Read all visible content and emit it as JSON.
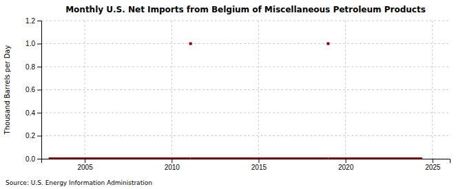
{
  "chart_data": {
    "type": "scatter",
    "title": "Monthly U.S. Net Imports from Belgium of Miscellaneous Petroleum Products",
    "y_label": "Thousand Barrels per Day",
    "annotations": [
      "Source: U.S. Energy Information Administration"
    ],
    "color": "#8b0000",
    "marker": "square",
    "grid": true,
    "xlim": [
      2002.5,
      2026
    ],
    "ylim": [
      0.0,
      1.2
    ],
    "xticks": [
      2005,
      2010,
      2015,
      2020,
      2025
    ],
    "yticks": [
      {
        "value": 0.0,
        "label": "0.0"
      },
      0.2,
      0.4,
      0.6,
      0.8,
      {
        "value": 1.0,
        "label": "1.0"
      },
      1.2
    ],
    "x": [
      2003.0,
      2003.083,
      2003.167,
      2003.25,
      2003.333,
      2003.417,
      2003.5,
      2003.583,
      2003.667,
      2003.75,
      2003.833,
      2003.917,
      2004.0,
      2004.083,
      2004.167,
      2004.25,
      2004.333,
      2004.417,
      2004.5,
      2004.583,
      2004.667,
      2004.75,
      2004.833,
      2004.917,
      2005.0,
      2005.083,
      2005.167,
      2005.25,
      2005.333,
      2005.417,
      2005.5,
      2005.583,
      2005.667,
      2005.75,
      2005.833,
      2005.917,
      2006.0,
      2006.083,
      2006.167,
      2006.25,
      2006.333,
      2006.417,
      2006.5,
      2006.583,
      2006.667,
      2006.75,
      2006.833,
      2006.917,
      2007.0,
      2007.083,
      2007.167,
      2007.25,
      2007.333,
      2007.417,
      2007.5,
      2007.583,
      2007.667,
      2007.75,
      2007.833,
      2007.917,
      2008.0,
      2008.083,
      2008.167,
      2008.25,
      2008.333,
      2008.417,
      2008.5,
      2008.583,
      2008.667,
      2008.75,
      2008.833,
      2008.917,
      2009.0,
      2009.083,
      2009.167,
      2009.25,
      2009.333,
      2009.417,
      2009.5,
      2009.583,
      2009.667,
      2009.75,
      2009.833,
      2009.917,
      2010.0,
      2010.083,
      2010.167,
      2010.25,
      2010.333,
      2010.417,
      2010.5,
      2010.583,
      2010.667,
      2010.75,
      2010.833,
      2010.917,
      2011.0,
      2011.083,
      2011.167,
      2011.25,
      2011.333,
      2011.417,
      2011.5,
      2011.583,
      2011.667,
      2011.75,
      2011.833,
      2011.917,
      2012.0,
      2012.083,
      2012.167,
      2012.25,
      2012.333,
      2012.417,
      2012.5,
      2012.583,
      2012.667,
      2012.75,
      2012.833,
      2012.917,
      2013.0,
      2013.083,
      2013.167,
      2013.25,
      2013.333,
      2013.417,
      2013.5,
      2013.583,
      2013.667,
      2013.75,
      2013.833,
      2013.917,
      2014.0,
      2014.083,
      2014.167,
      2014.25,
      2014.333,
      2014.417,
      2014.5,
      2014.583,
      2014.667,
      2014.75,
      2014.833,
      2014.917,
      2015.0,
      2015.083,
      2015.167,
      2015.25,
      2015.333,
      2015.417,
      2015.5,
      2015.583,
      2015.667,
      2015.75,
      2015.833,
      2015.917,
      2016.0,
      2016.083,
      2016.167,
      2016.25,
      2016.333,
      2016.417,
      2016.5,
      2016.583,
      2016.667,
      2016.75,
      2016.833,
      2016.917,
      2017.0,
      2017.083,
      2017.167,
      2017.25,
      2017.333,
      2017.417,
      2017.5,
      2017.583,
      2017.667,
      2017.75,
      2017.833,
      2017.917,
      2018.0,
      2018.083,
      2018.167,
      2018.25,
      2018.333,
      2018.417,
      2018.5,
      2018.583,
      2018.667,
      2018.75,
      2018.833,
      2018.917,
      2019.0,
      2019.083,
      2019.167,
      2019.25,
      2019.333,
      2019.417,
      2019.5,
      2019.583,
      2019.667,
      2019.75,
      2019.833,
      2019.917,
      2020.0,
      2020.083,
      2020.167,
      2020.25,
      2020.333,
      2020.417,
      2020.5,
      2020.583,
      2020.667,
      2020.75,
      2020.833,
      2020.917,
      2021.0,
      2021.083,
      2021.167,
      2021.25,
      2021.333,
      2021.417,
      2021.5,
      2021.583,
      2021.667,
      2021.75,
      2021.833,
      2021.917,
      2022.0,
      2022.083,
      2022.167,
      2022.25,
      2022.333,
      2022.417,
      2022.5,
      2022.583,
      2022.667,
      2022.75,
      2022.833,
      2022.917,
      2023.0,
      2023.083,
      2023.167,
      2023.25,
      2023.333,
      2023.417,
      2023.5,
      2023.583,
      2023.667,
      2023.75,
      2023.833,
      2023.917,
      2024.0,
      2024.083,
      2024.167,
      2024.25,
      2024.333
    ],
    "values": [
      0,
      0,
      0,
      0,
      0,
      0,
      0,
      0,
      0,
      0,
      0,
      0,
      0,
      0,
      0,
      0,
      0,
      0,
      0,
      0,
      0,
      0,
      0,
      0,
      0,
      0,
      0,
      0,
      0,
      0,
      0,
      0,
      0,
      0,
      0,
      0,
      0,
      0,
      0,
      0,
      0,
      0,
      0,
      0,
      0,
      0,
      0,
      0,
      0,
      0,
      0,
      0,
      0,
      0,
      0,
      0,
      0,
      0,
      0,
      0,
      0,
      0,
      0,
      0,
      0,
      0,
      0,
      0,
      0,
      0,
      0,
      0,
      0,
      0,
      0,
      0,
      0,
      0,
      0,
      0,
      0,
      0,
      0,
      0,
      0,
      0,
      0,
      0,
      0,
      0,
      0,
      0,
      0,
      0,
      0,
      0,
      0,
      1,
      0,
      0,
      0,
      0,
      0,
      0,
      0,
      0,
      0,
      0,
      0,
      0,
      0,
      0,
      0,
      0,
      0,
      0,
      0,
      0,
      0,
      0,
      0,
      0,
      0,
      0,
      0,
      0,
      0,
      0,
      0,
      0,
      0,
      0,
      0,
      0,
      0,
      0,
      0,
      0,
      0,
      0,
      0,
      0,
      0,
      0,
      0,
      0,
      0,
      0,
      0,
      0,
      0,
      0,
      0,
      0,
      0,
      0,
      0,
      0,
      0,
      0,
      0,
      0,
      0,
      0,
      0,
      0,
      0,
      0,
      0,
      0,
      0,
      0,
      0,
      0,
      0,
      0,
      0,
      0,
      0,
      0,
      0,
      0,
      0,
      0,
      0,
      0,
      0,
      0,
      0,
      0,
      0,
      0,
      1,
      0,
      0,
      0,
      0,
      0,
      0,
      0,
      0,
      0,
      0,
      0,
      0,
      0,
      0,
      0,
      0,
      0,
      0,
      0,
      0,
      0,
      0,
      0,
      0,
      0,
      0,
      0,
      0,
      0,
      0,
      0,
      0,
      0,
      0,
      0,
      0,
      0,
      0,
      0,
      0,
      0,
      0,
      0,
      0,
      0,
      0,
      0,
      0,
      0,
      0,
      0,
      0,
      0,
      0,
      0,
      0,
      0,
      0,
      0,
      0,
      0,
      0,
      0,
      0
    ]
  }
}
